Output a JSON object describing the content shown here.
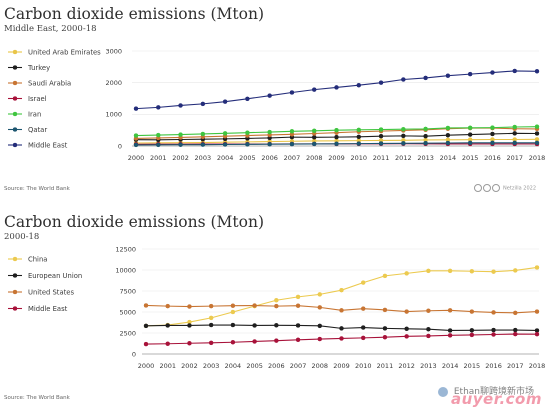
{
  "charts": [
    {
      "title": "Carbon dioxide emissions (Mton)",
      "subtitle": "Middle East, 2000-18",
      "source": "Source: The World Bank",
      "credit": "Netzilla 2022"
    },
    {
      "title": "Carbon dioxide emissions (Mton)",
      "subtitle": "2000-18",
      "source": "Source: The World Bank"
    }
  ],
  "watermark": {
    "text": "Ethan聊跨境新市场",
    "brand": "auyer.com",
    "logo_icon": "wechat-logo-icon"
  },
  "chart_data": [
    {
      "type": "line",
      "title": "Carbon dioxide emissions (Mton)",
      "subtitle": "Middle East, 2000-18",
      "x": [
        2000,
        2001,
        2002,
        2003,
        2004,
        2005,
        2006,
        2007,
        2008,
        2009,
        2010,
        2011,
        2012,
        2013,
        2014,
        2015,
        2016,
        2017,
        2018
      ],
      "ylim": [
        0,
        3000
      ],
      "yticks": [
        0,
        1000,
        2000,
        3000
      ],
      "grid": true,
      "legend": "left",
      "series": [
        {
          "name": "United Arab Emirates",
          "color": "#e9c548",
          "values": [
            95,
            100,
            105,
            110,
            120,
            130,
            140,
            150,
            160,
            165,
            170,
            175,
            180,
            190,
            195,
            200,
            205,
            205,
            210
          ]
        },
        {
          "name": "Turkey",
          "color": "#1f1f1f",
          "values": [
            200,
            195,
            205,
            215,
            225,
            240,
            255,
            280,
            275,
            280,
            290,
            310,
            320,
            310,
            340,
            360,
            380,
            400,
            395
          ]
        },
        {
          "name": "Saudi Arabia",
          "color": "#c87533",
          "values": [
            240,
            255,
            270,
            290,
            310,
            330,
            350,
            370,
            395,
            420,
            450,
            470,
            490,
            510,
            545,
            565,
            565,
            545,
            540
          ]
        },
        {
          "name": "Israel",
          "color": "#a8123a",
          "values": [
            55,
            57,
            58,
            60,
            60,
            62,
            63,
            65,
            67,
            65,
            68,
            70,
            72,
            68,
            66,
            65,
            65,
            64,
            63
          ]
        },
        {
          "name": "Iran",
          "color": "#3fc53f",
          "values": [
            330,
            345,
            360,
            380,
            400,
            420,
            440,
            465,
            480,
            500,
            510,
            520,
            530,
            540,
            570,
            575,
            580,
            600,
            610
          ]
        },
        {
          "name": "Qatar",
          "color": "#1d5670",
          "values": [
            35,
            37,
            40,
            43,
            47,
            52,
            56,
            60,
            66,
            70,
            75,
            80,
            85,
            90,
            95,
            100,
            100,
            100,
            100
          ]
        },
        {
          "name": "Middle East",
          "color": "#242d7a",
          "values": [
            1180,
            1220,
            1280,
            1330,
            1400,
            1490,
            1590,
            1690,
            1780,
            1850,
            1920,
            2000,
            2100,
            2150,
            2220,
            2270,
            2320,
            2370,
            2360
          ]
        }
      ]
    },
    {
      "type": "line",
      "title": "Carbon dioxide emissions (Mton)",
      "subtitle": "2000-18",
      "x": [
        2000,
        2001,
        2002,
        2003,
        2004,
        2005,
        2006,
        2007,
        2008,
        2009,
        2010,
        2011,
        2012,
        2013,
        2014,
        2015,
        2016,
        2017,
        2018
      ],
      "ylim": [
        0,
        12500
      ],
      "yticks": [
        0,
        2500,
        5000,
        7500,
        10000,
        12500
      ],
      "grid": true,
      "legend": "left",
      "series": [
        {
          "name": "China",
          "color": "#ecca4f",
          "values": [
            3350,
            3450,
            3800,
            4300,
            5000,
            5700,
            6400,
            6800,
            7100,
            7600,
            8500,
            9300,
            9600,
            9900,
            9900,
            9850,
            9800,
            9950,
            10300
          ]
        },
        {
          "name": "European Union",
          "color": "#1f1f1f",
          "values": [
            3350,
            3400,
            3400,
            3450,
            3450,
            3400,
            3420,
            3400,
            3350,
            3050,
            3150,
            3050,
            3000,
            2950,
            2800,
            2820,
            2850,
            2850,
            2800
          ]
        },
        {
          "name": "United States",
          "color": "#c87533",
          "values": [
            5780,
            5700,
            5650,
            5700,
            5750,
            5770,
            5700,
            5750,
            5550,
            5200,
            5400,
            5250,
            5050,
            5150,
            5200,
            5050,
            4950,
            4900,
            5050
          ]
        },
        {
          "name": "Middle East",
          "color": "#a8123a",
          "values": [
            1180,
            1220,
            1280,
            1330,
            1400,
            1490,
            1590,
            1690,
            1780,
            1850,
            1920,
            2000,
            2100,
            2150,
            2220,
            2270,
            2320,
            2370,
            2360
          ]
        }
      ]
    }
  ]
}
